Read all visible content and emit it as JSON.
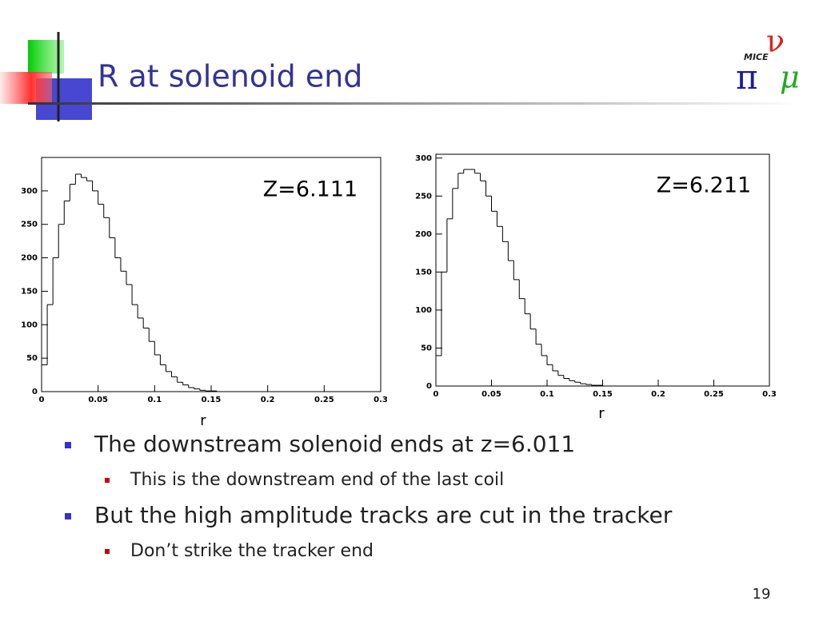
{
  "slide": {
    "title": "R at solenoid end",
    "bullets": [
      {
        "text": "The downstream solenoid ends at z=6.011",
        "sub": [
          "This is the downstream end of the last coil"
        ]
      },
      {
        "text": "But the high amplitude tracks are cut in the tracker",
        "sub": [
          "Don’t strike the tracker end"
        ]
      }
    ],
    "page_number": "19",
    "logo": {
      "name": "MICE",
      "symbols": [
        "π",
        "ν",
        "μ"
      ]
    }
  },
  "chart_data": [
    {
      "type": "histogram",
      "annotation": "Z=6.111",
      "xlabel": "r",
      "color": "#000000",
      "bins": [
        0,
        0.005,
        0.01,
        0.015,
        0.02,
        0.025,
        0.03,
        0.035,
        0.04,
        0.045,
        0.05,
        0.055,
        0.06,
        0.065,
        0.07,
        0.075,
        0.08,
        0.085,
        0.09,
        0.095,
        0.1,
        0.105,
        0.11,
        0.115,
        0.12,
        0.125,
        0.13,
        0.135,
        0.14,
        0.145,
        0.15,
        0.155,
        0.16
      ],
      "counts": [
        40,
        130,
        200,
        250,
        285,
        310,
        325,
        320,
        315,
        300,
        280,
        260,
        230,
        200,
        180,
        160,
        130,
        110,
        95,
        75,
        55,
        40,
        30,
        22,
        14,
        10,
        6,
        4,
        2,
        1,
        1,
        0
      ],
      "xlim": [
        0,
        0.3
      ],
      "ylim": [
        0,
        350
      ],
      "xticks": [
        0,
        0.05,
        0.1,
        0.15,
        0.2,
        0.25,
        0.3
      ],
      "yticks": [
        0,
        50,
        100,
        150,
        200,
        250,
        300
      ]
    },
    {
      "type": "histogram",
      "annotation": "Z=6.211",
      "xlabel": "r",
      "color": "#000000",
      "bins": [
        0,
        0.005,
        0.01,
        0.015,
        0.02,
        0.025,
        0.03,
        0.035,
        0.04,
        0.045,
        0.05,
        0.055,
        0.06,
        0.065,
        0.07,
        0.075,
        0.08,
        0.085,
        0.09,
        0.095,
        0.1,
        0.105,
        0.11,
        0.115,
        0.12,
        0.125,
        0.13,
        0.135,
        0.14,
        0.145,
        0.15,
        0.155,
        0.16
      ],
      "counts": [
        40,
        150,
        220,
        260,
        280,
        285,
        285,
        280,
        270,
        250,
        230,
        210,
        190,
        165,
        140,
        115,
        95,
        75,
        55,
        40,
        28,
        20,
        14,
        10,
        7,
        5,
        3,
        2,
        1,
        1,
        0,
        0
      ],
      "xlim": [
        0,
        0.3
      ],
      "ylim": [
        0,
        305
      ],
      "xticks": [
        0,
        0.05,
        0.1,
        0.15,
        0.2,
        0.25,
        0.3
      ],
      "yticks": [
        0,
        50,
        100,
        150,
        200,
        250,
        300
      ]
    }
  ]
}
